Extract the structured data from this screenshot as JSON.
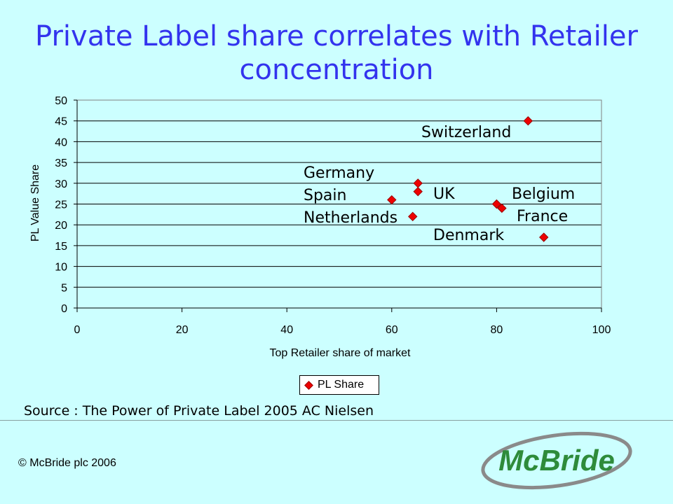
{
  "title": "Private Label share correlates with Retailer concentration",
  "chart_data": {
    "type": "scatter",
    "xlabel": "Top  Retailer share of market",
    "ylabel": "PL Value Share",
    "xlim": [
      0,
      100
    ],
    "ylim": [
      0,
      50
    ],
    "xticks": [
      "0",
      "20",
      "40",
      "60",
      "80",
      "100"
    ],
    "yticks": [
      "0",
      "5",
      "10",
      "15",
      "20",
      "25",
      "30",
      "35",
      "40",
      "45",
      "50"
    ],
    "grid": "horizontal",
    "legend_placement": "bottom",
    "series": [
      {
        "name": "PL Share",
        "color": "#ee0000",
        "points": [
          {
            "x": 86,
            "y": 45
          },
          {
            "x": 65,
            "y": 30
          },
          {
            "x": 65,
            "y": 28
          },
          {
            "x": 60,
            "y": 26
          },
          {
            "x": 64,
            "y": 22
          },
          {
            "x": 80,
            "y": 25
          },
          {
            "x": 81,
            "y": 24
          },
          {
            "x": 89,
            "y": 17
          }
        ]
      }
    ],
    "annotations": [
      "Switzerland",
      "Germany",
      "Spain",
      "Netherlands",
      "UK",
      "Belgium",
      "France",
      "Denmark"
    ]
  },
  "source": "Source : The Power of Private Label 2005 AC Nielsen",
  "copyright": "© McBride plc 2006",
  "logo_text": "McBride",
  "colors": {
    "background": "#ccffff",
    "title": "#3333ee",
    "logo": "#2e8b3a"
  }
}
